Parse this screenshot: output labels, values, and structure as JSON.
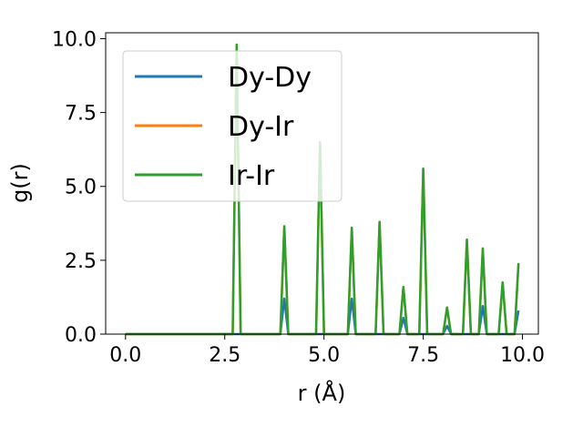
{
  "chart_data": {
    "type": "line",
    "xlabel": "r (Å)",
    "ylabel": "g(r)",
    "xlim": [
      -0.5,
      10.4
    ],
    "ylim": [
      0,
      10.2
    ],
    "x_ticks": [
      "0.0",
      "2.5",
      "5.0",
      "7.5",
      "10.0"
    ],
    "y_ticks": [
      "0.0",
      "2.5",
      "5.0",
      "7.5",
      "10.0"
    ],
    "grid": false,
    "legend_position": "top-left",
    "x": [
      0.0,
      0.1,
      0.2,
      0.3,
      0.4,
      0.5,
      0.6,
      0.7,
      0.8,
      0.9,
      1.0,
      1.1,
      1.2,
      1.3,
      1.4,
      1.5,
      1.6,
      1.7,
      1.8,
      1.9,
      2.0,
      2.1,
      2.2,
      2.3,
      2.4,
      2.5,
      2.6,
      2.7,
      2.8,
      2.9,
      3.0,
      3.1,
      3.2,
      3.3,
      3.4,
      3.5,
      3.6,
      3.7,
      3.8,
      3.9,
      4.0,
      4.1,
      4.2,
      4.3,
      4.4,
      4.5,
      4.6,
      4.7,
      4.8,
      4.9,
      5.0,
      5.1,
      5.2,
      5.3,
      5.4,
      5.5,
      5.6,
      5.7,
      5.8,
      5.9,
      6.0,
      6.1,
      6.2,
      6.3,
      6.4,
      6.5,
      6.6,
      6.7,
      6.8,
      6.9,
      7.0,
      7.1,
      7.2,
      7.3,
      7.4,
      7.5,
      7.6,
      7.7,
      7.8,
      7.9,
      8.0,
      8.1,
      8.2,
      8.3,
      8.4,
      8.5,
      8.6,
      8.7,
      8.8,
      8.9,
      9.0,
      9.1,
      9.2,
      9.3,
      9.4,
      9.5,
      9.6,
      9.7,
      9.8,
      9.9
    ],
    "series": [
      {
        "name": "Dy-Dy",
        "color": "#1f77b4",
        "values": [
          0,
          0,
          0,
          0,
          0,
          0,
          0,
          0,
          0,
          0,
          0,
          0,
          0,
          0,
          0,
          0,
          0,
          0,
          0,
          0,
          0,
          0,
          0,
          0,
          0,
          0,
          0,
          0,
          0,
          0,
          0,
          0,
          0,
          0,
          0,
          0,
          0,
          0,
          0,
          0,
          1.2,
          0,
          0,
          0,
          0,
          0,
          0,
          0,
          0,
          0,
          0,
          0,
          0,
          0,
          0,
          0,
          0,
          1.2,
          0,
          0,
          0,
          0,
          0,
          0,
          0,
          0,
          0,
          0,
          0,
          0,
          0.55,
          0,
          0,
          0,
          0,
          0,
          0,
          0,
          0,
          0,
          0,
          0.28,
          0,
          0,
          0,
          0,
          0,
          0,
          0,
          0,
          0.95,
          0,
          0,
          0,
          0,
          0,
          0,
          0,
          0,
          0.8
        ]
      },
      {
        "name": "Dy-Ir",
        "color": "#ff7f0e",
        "values": [
          0,
          0,
          0,
          0,
          0,
          0,
          0,
          0,
          0,
          0,
          0,
          0,
          0,
          0,
          0,
          0,
          0,
          0,
          0,
          0,
          0,
          0,
          0,
          0,
          0,
          0,
          0,
          0,
          9.8,
          0,
          0,
          0,
          0,
          0,
          0,
          0,
          0,
          0,
          0,
          0,
          3.65,
          0,
          0,
          0,
          0,
          0,
          0,
          0,
          0,
          6.5,
          0,
          0,
          0,
          0,
          0,
          0,
          0,
          3.6,
          0,
          0,
          0,
          0,
          0,
          0,
          3.8,
          0,
          0,
          0,
          0,
          0,
          1.6,
          0,
          0,
          0,
          0,
          5.6,
          0,
          0,
          0,
          0,
          0,
          0.9,
          0,
          0,
          0,
          0,
          3.2,
          0,
          0,
          0,
          2.9,
          0,
          0,
          0,
          0,
          1.75,
          0,
          0,
          0,
          2.4
        ]
      },
      {
        "name": "Ir-Ir",
        "color": "#2ca02c",
        "values": [
          0,
          0,
          0,
          0,
          0,
          0,
          0,
          0,
          0,
          0,
          0,
          0,
          0,
          0,
          0,
          0,
          0,
          0,
          0,
          0,
          0,
          0,
          0,
          0,
          0,
          0,
          0,
          0,
          9.8,
          0,
          0,
          0,
          0,
          0,
          0,
          0,
          0,
          0,
          0,
          0,
          3.65,
          0,
          0,
          0,
          0,
          0,
          0,
          0,
          0,
          6.5,
          0,
          0,
          0,
          0,
          0,
          0,
          0,
          3.6,
          0,
          0,
          0,
          0,
          0,
          0,
          3.8,
          0,
          0,
          0,
          0,
          0,
          1.6,
          0,
          0,
          0,
          0,
          5.6,
          0,
          0,
          0,
          0,
          0,
          0.9,
          0,
          0,
          0,
          0,
          3.2,
          0,
          0,
          0,
          2.9,
          0,
          0,
          0,
          0,
          1.75,
          0,
          0,
          0,
          2.4
        ]
      }
    ]
  }
}
